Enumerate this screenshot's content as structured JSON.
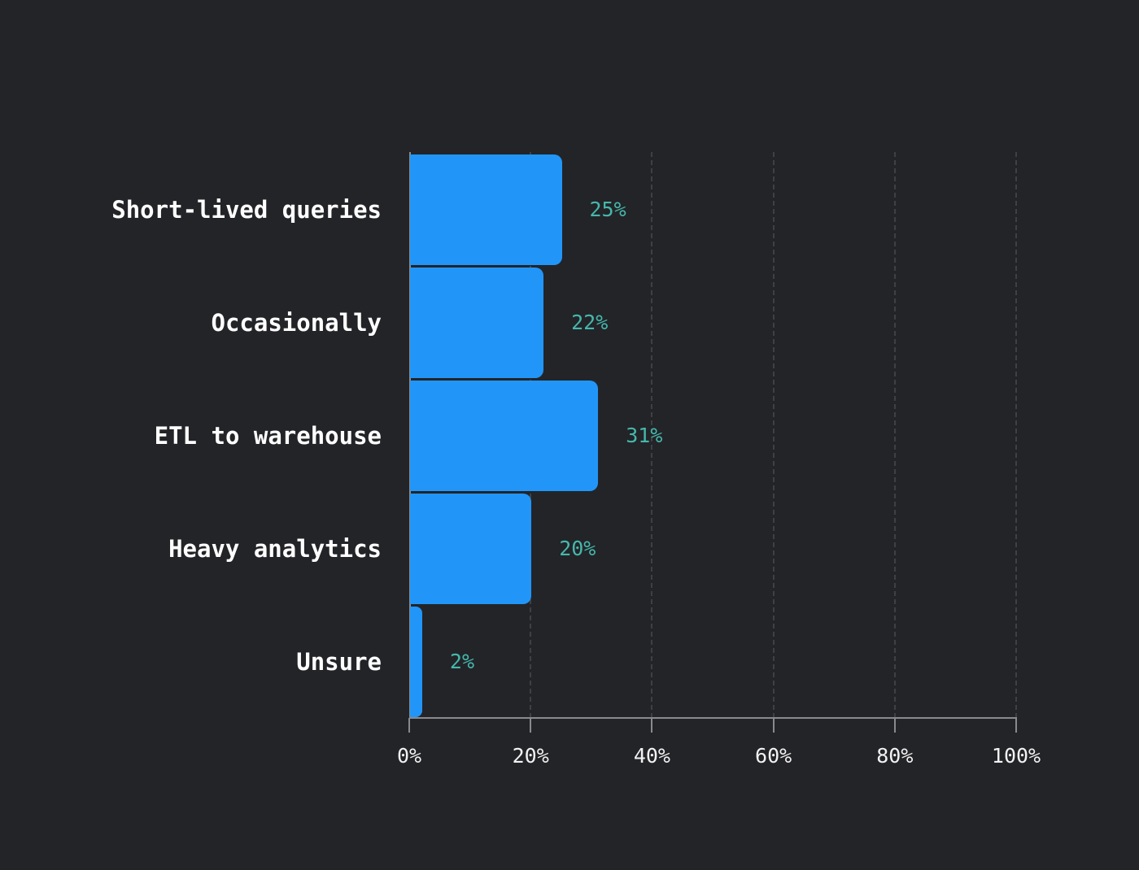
{
  "chart_data": {
    "type": "bar",
    "orientation": "horizontal",
    "title": "",
    "xlabel": "",
    "ylabel": "",
    "categories": [
      "Short-lived queries",
      "Occasionally",
      "ETL to warehouse",
      "Heavy analytics",
      "Unsure"
    ],
    "values": [
      25,
      22,
      31,
      20,
      2
    ],
    "value_labels": [
      "25%",
      "22%",
      "31%",
      "20%",
      "2%"
    ],
    "xlim": [
      0,
      100
    ],
    "x_ticks": [
      "0%",
      "20%",
      "40%",
      "60%",
      "80%",
      "100%"
    ],
    "grid": "vertical dashed",
    "legend": "none",
    "colors": {
      "bar": "#2196f8",
      "value_label": "#45b8ac",
      "background": "#232428",
      "axis": "#8a8a8e",
      "grid": "#3f4045"
    }
  }
}
